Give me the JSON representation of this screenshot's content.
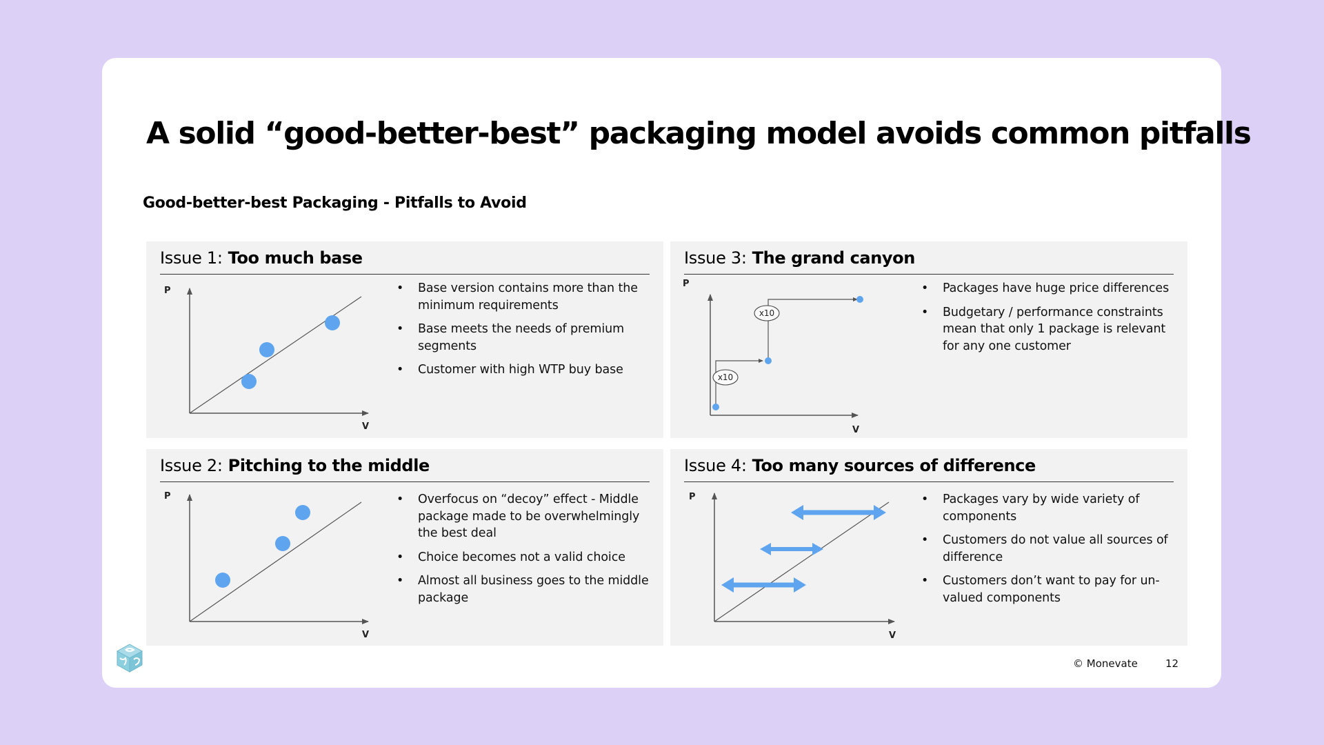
{
  "title": "A solid “good-better-best” packaging model avoids common pitfalls",
  "subtitle": "Good-better-best Packaging - Pitfalls to Avoid",
  "axes": {
    "y": "P",
    "x": "V"
  },
  "issues": [
    {
      "prefix": "Issue 1:",
      "name": "Too much base",
      "bullets": [
        "Base version contains more than the minimum requirements",
        "Base meets the needs of premium segments",
        "Customer with high WTP buy base"
      ]
    },
    {
      "prefix": "Issue 2:",
      "name": "Pitching to the middle",
      "bullets": [
        "Overfocus on “decoy” effect - Middle package made to be overwhelmingly the best deal",
        "Choice becomes not a valid choice",
        "Almost all business goes to the middle package"
      ]
    },
    {
      "prefix": "Issue 3:",
      "name": "The grand canyon",
      "multipliers": [
        "x10",
        "x10"
      ],
      "bullets": [
        "Packages have huge price differences",
        "Budgetary / performance constraints mean that only 1 package is relevant for any one customer"
      ]
    },
    {
      "prefix": "Issue 4:",
      "name": "Too many sources of difference",
      "bullets": [
        "Packages vary by wide variety of components",
        "Customers do not value all sources of difference",
        "Customers don’t want to pay for un-valued components"
      ]
    }
  ],
  "footer": {
    "copyright": "© Monevate",
    "page": "12"
  },
  "colors": {
    "accent": "#5fa4ee",
    "panel": "#f2f2f2",
    "background": "#dcd0f7"
  },
  "icons": {
    "logo": "cube-logo-icon"
  }
}
